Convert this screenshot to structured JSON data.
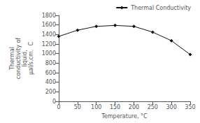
{
  "chart_data": {
    "type": "line",
    "x": [
      0,
      50,
      100,
      150,
      200,
      250,
      300,
      350
    ],
    "series": [
      {
        "name": "Thermal Conductivity",
        "color": "#111111",
        "marker": "diamond",
        "values": [
          1360,
          1490,
          1570,
          1590,
          1570,
          1450,
          1270,
          980
        ]
      }
    ],
    "xlabel": "Temperature, °C",
    "ylabel": "Thermal\nconductivity of\nliquid,\nμal/s.cm.  C",
    "xlim": [
      0,
      350
    ],
    "ylim": [
      0,
      1800
    ],
    "xticks": [
      0,
      50,
      100,
      150,
      200,
      250,
      300,
      350
    ],
    "yticks": [
      0,
      200,
      400,
      600,
      800,
      1000,
      1200,
      1400,
      1600,
      1800
    ],
    "grid": false,
    "legend": "upper right"
  }
}
